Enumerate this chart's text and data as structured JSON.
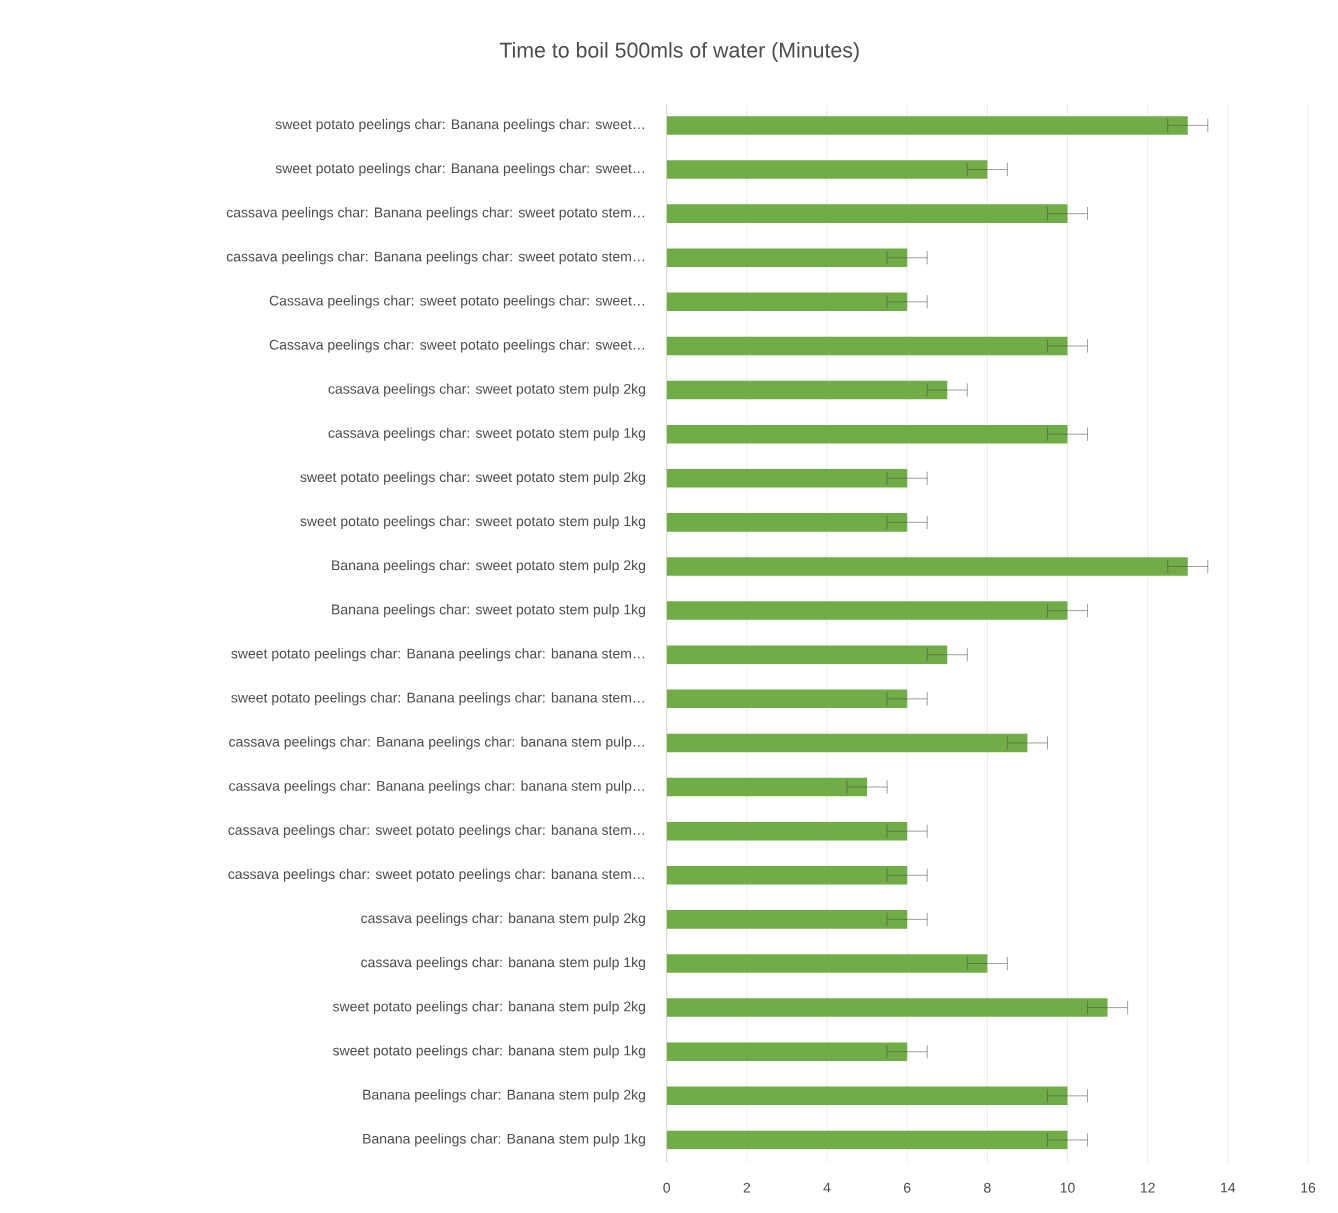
{
  "chart_data": {
    "type": "bar",
    "orientation": "horizontal",
    "title": "Time to boil 500mls of water (Minutes)",
    "categories": [
      "sweet potato peelings char: Banana peelings char: sweet…",
      "sweet potato peelings char: Banana peelings char: sweet…",
      "cassava peelings char: Banana peelings char: sweet potato stem…",
      "cassava peelings char: Banana peelings char: sweet potato stem…",
      "Cassava peelings char: sweet potato peelings char: sweet…",
      "Cassava peelings char: sweet potato peelings char: sweet…",
      "cassava peelings char: sweet potato stem pulp 2kg",
      "cassava peelings char: sweet potato stem pulp 1kg",
      "sweet potato peelings char: sweet potato stem pulp 2kg",
      "sweet potato peelings char: sweet potato stem pulp 1kg",
      "Banana peelings char: sweet potato stem pulp 2kg",
      "Banana peelings char: sweet potato stem pulp 1kg",
      "sweet potato peelings char: Banana peelings char: banana stem…",
      "sweet potato peelings char: Banana peelings char: banana stem…",
      "cassava peelings char: Banana peelings char: banana stem pulp…",
      "cassava peelings char: Banana peelings char: banana stem pulp…",
      "cassava peelings char: sweet potato peelings char: banana stem…",
      "cassava peelings char: sweet potato peelings char: banana stem…",
      "cassava peelings char: banana stem pulp 2kg",
      "cassava peelings char: banana stem pulp 1kg",
      "sweet potato peelings char: banana stem pulp 2kg",
      "sweet potato peelings char: banana stem pulp 1kg",
      "Banana peelings char: Banana stem pulp 2kg",
      "Banana peelings char: Banana stem pulp 1kg"
    ],
    "values": [
      13,
      8,
      10,
      6,
      6,
      10,
      7,
      10,
      6,
      6,
      13,
      10,
      7,
      6,
      9,
      5,
      6,
      6,
      6,
      8,
      11,
      6,
      10,
      10
    ],
    "errors": [
      0.5,
      0.5,
      0.5,
      0.5,
      0.5,
      0.5,
      0.5,
      0.5,
      0.5,
      0.5,
      0.5,
      0.5,
      0.5,
      0.5,
      0.5,
      0.5,
      0.5,
      0.5,
      0.5,
      0.5,
      0.5,
      0.5,
      0.5,
      0.5
    ],
    "color": "#70ad47",
    "xlim": [
      0,
      16
    ],
    "xticks": [
      0,
      2,
      4,
      6,
      8,
      10,
      12,
      14,
      16
    ],
    "grid": "x"
  }
}
